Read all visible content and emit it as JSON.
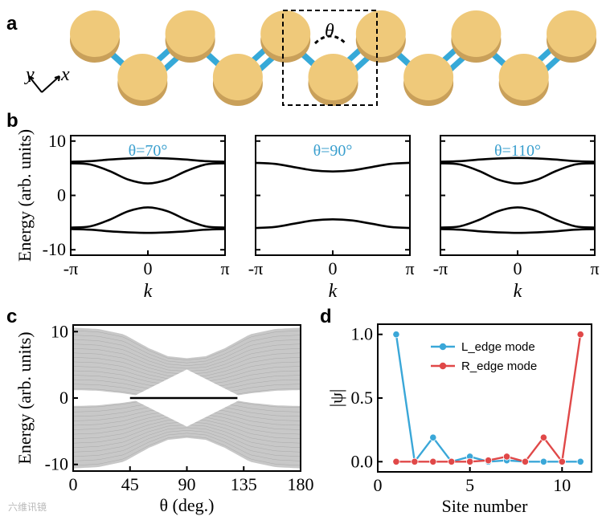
{
  "panels": {
    "a": "a",
    "b": "b",
    "c": "c",
    "d": "d"
  },
  "chain": {
    "angle_symbol": "θ",
    "axis_x": "x",
    "axis_y": "y",
    "disks": 11
  },
  "watermark": "六维讯镜",
  "colors": {
    "disk": "#efc97a",
    "disk_edge": "#c9a05a",
    "bond": "#36a9d8",
    "angle_text": "#3a9fce",
    "l_edge": "#3aa7d8",
    "r_edge": "#e04848",
    "spectrum": "#b5b5b5"
  },
  "chart_data": [
    {
      "id": "b1",
      "type": "line",
      "annotation": "θ=70°",
      "xlabel": "k",
      "ylabel": "Energy (arb. units)",
      "xlim": [
        -3.1416,
        3.1416
      ],
      "ylim": [
        -11,
        11
      ],
      "xticks": [
        "-π",
        "0",
        "π"
      ],
      "yticks": [
        "10",
        "0",
        "-10"
      ],
      "bands": [
        {
          "x": [
            -3.1416,
            -2.36,
            -1.57,
            -0.79,
            0,
            0.79,
            1.57,
            2.36,
            3.1416
          ],
          "y": [
            5.9,
            5.7,
            4.5,
            2.9,
            2.2,
            2.9,
            4.5,
            5.7,
            5.9
          ]
        },
        {
          "x": [
            -3.1416,
            -2.36,
            -1.57,
            -0.79,
            0,
            0.79,
            1.57,
            2.36,
            3.1416
          ],
          "y": [
            -5.9,
            -5.7,
            -4.5,
            -2.9,
            -2.2,
            -2.9,
            -4.5,
            -5.7,
            -5.9
          ]
        },
        {
          "x": [
            -3.1416,
            -2.36,
            -1.57,
            -0.79,
            0,
            0.79,
            1.57,
            2.36,
            3.1416
          ],
          "y": [
            6.2,
            6.3,
            6.6,
            6.8,
            6.9,
            6.8,
            6.6,
            6.3,
            6.2
          ]
        },
        {
          "x": [
            -3.1416,
            -2.36,
            -1.57,
            -0.79,
            0,
            0.79,
            1.57,
            2.36,
            3.1416
          ],
          "y": [
            -6.2,
            -6.3,
            -6.6,
            -6.8,
            -6.9,
            -6.8,
            -6.6,
            -6.3,
            -6.2
          ]
        }
      ]
    },
    {
      "id": "b2",
      "type": "line",
      "annotation": "θ=90°",
      "xlabel": "k",
      "ylabel": "",
      "xlim": [
        -3.1416,
        3.1416
      ],
      "ylim": [
        -11,
        11
      ],
      "xticks": [
        "-π",
        "0",
        "π"
      ],
      "yticks": [],
      "bands": [
        {
          "x": [
            -3.1416,
            -2.36,
            -1.57,
            -0.79,
            0,
            0.79,
            1.57,
            2.36,
            3.1416
          ],
          "y": [
            6.0,
            5.8,
            5.2,
            4.6,
            4.4,
            4.6,
            5.2,
            5.8,
            6.0
          ]
        },
        {
          "x": [
            -3.1416,
            -2.36,
            -1.57,
            -0.79,
            0,
            0.79,
            1.57,
            2.36,
            3.1416
          ],
          "y": [
            -6.0,
            -5.8,
            -5.2,
            -4.6,
            -4.4,
            -4.6,
            -5.2,
            -5.8,
            -6.0
          ]
        }
      ]
    },
    {
      "id": "b3",
      "type": "line",
      "annotation": "θ=110°",
      "xlabel": "k",
      "ylabel": "",
      "xlim": [
        -3.1416,
        3.1416
      ],
      "ylim": [
        -11,
        11
      ],
      "xticks": [
        "-π",
        "0",
        "π"
      ],
      "yticks": [],
      "bands": [
        {
          "x": [
            -3.1416,
            -2.36,
            -1.57,
            -0.79,
            0,
            0.79,
            1.57,
            2.36,
            3.1416
          ],
          "y": [
            5.9,
            5.7,
            4.5,
            2.9,
            2.2,
            2.9,
            4.5,
            5.7,
            5.9
          ]
        },
        {
          "x": [
            -3.1416,
            -2.36,
            -1.57,
            -0.79,
            0,
            0.79,
            1.57,
            2.36,
            3.1416
          ],
          "y": [
            -5.9,
            -5.7,
            -4.5,
            -2.9,
            -2.2,
            -2.9,
            -4.5,
            -5.7,
            -5.9
          ]
        },
        {
          "x": [
            -3.1416,
            -2.36,
            -1.57,
            -0.79,
            0,
            0.79,
            1.57,
            2.36,
            3.1416
          ],
          "y": [
            6.2,
            6.3,
            6.6,
            6.8,
            6.9,
            6.8,
            6.6,
            6.3,
            6.2
          ]
        },
        {
          "x": [
            -3.1416,
            -2.36,
            -1.57,
            -0.79,
            0,
            0.79,
            1.57,
            2.36,
            3.1416
          ],
          "y": [
            -6.2,
            -6.3,
            -6.6,
            -6.8,
            -6.9,
            -6.8,
            -6.6,
            -6.3,
            -6.2
          ]
        }
      ]
    },
    {
      "id": "c",
      "type": "area",
      "xlabel": "θ (deg.)",
      "ylabel": "Energy (arb. units)",
      "xlim": [
        0,
        180
      ],
      "ylim": [
        -11,
        11
      ],
      "xticks": [
        "0",
        "45",
        "90",
        "135",
        "180"
      ],
      "yticks": [
        "10",
        "0",
        "-10"
      ],
      "outer_top": {
        "x": [
          0,
          20,
          40,
          60,
          75,
          90,
          105,
          120,
          140,
          160,
          180
        ],
        "y": [
          10.6,
          10.4,
          9.6,
          7.5,
          6.3,
          6.0,
          6.3,
          7.5,
          9.6,
          10.4,
          10.6
        ]
      },
      "inner_top": {
        "x": [
          0,
          20,
          40,
          50,
          60,
          75,
          90,
          105,
          120,
          130,
          140,
          160,
          180
        ],
        "y": [
          1.2,
          1.1,
          0.7,
          0.4,
          0.2,
          0.1,
          0.1,
          0.1,
          0.2,
          0.4,
          0.7,
          1.1,
          1.2
        ]
      },
      "gap": {
        "x": [
          45,
          90,
          135
        ],
        "half_width": [
          0,
          4.3,
          0
        ]
      },
      "edge_state": {
        "x": [
          45,
          130
        ],
        "y": [
          0,
          0
        ]
      }
    },
    {
      "id": "d",
      "type": "line",
      "xlabel": "Site number",
      "ylabel": "|ψ|",
      "xlim": [
        0,
        11.6
      ],
      "ylim": [
        -0.08,
        1.08
      ],
      "xticks": [
        "0",
        "5",
        "10"
      ],
      "yticks": [
        "1.0",
        "0.5",
        "0.0"
      ],
      "legend_position": "top-right",
      "x": [
        1,
        2,
        3,
        4,
        5,
        6,
        7,
        8,
        9,
        10,
        11
      ],
      "series": [
        {
          "name": "L_edge mode",
          "values": [
            1.0,
            0.0,
            0.19,
            0.0,
            0.04,
            0.0,
            0.01,
            0.0,
            0.0,
            0.0,
            0.0
          ]
        },
        {
          "name": "R_edge mode",
          "values": [
            0.0,
            0.0,
            0.0,
            0.0,
            0.0,
            0.01,
            0.04,
            0.0,
            0.19,
            0.0,
            1.0
          ]
        }
      ]
    }
  ]
}
